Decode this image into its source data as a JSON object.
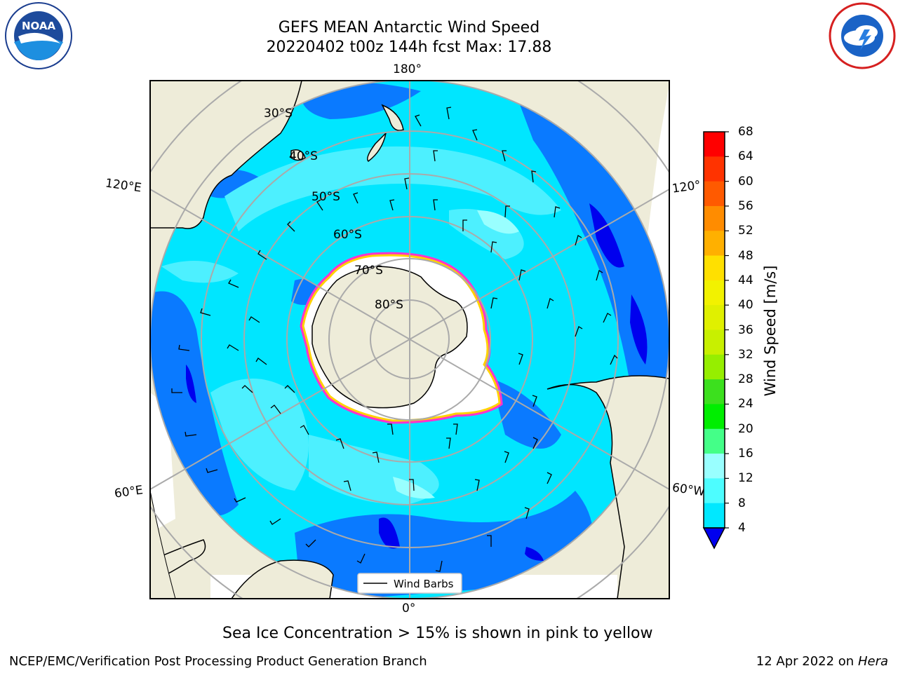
{
  "header": {
    "title_line1": "GEFS MEAN Antarctic Wind Speed",
    "title_line2": "20220402 t00z 144h fcst   Max: 17.88"
  },
  "logos": {
    "left": "noara-logo",
    "right": "nws-logo"
  },
  "map": {
    "lon_labels": {
      "top": "180°",
      "bottom": "0°",
      "left_upper": "120°E",
      "left_lower": "60°E",
      "right_upper": "120°",
      "right_lower": "60°W"
    },
    "lat_labels": [
      "30°S",
      "40°S",
      "50°S",
      "60°S",
      "70°S",
      "80°S"
    ],
    "legend_label": "Wind Barbs",
    "colors": {
      "land": "#eeecd9",
      "ocean_4": "#0a7aff",
      "ocean_8": "#00e6ff",
      "ocean_12": "#4df0ff",
      "ocean_16": "#99ffff",
      "ice_pink": "#ff33cc",
      "ice_yellow": "#ffd200"
    }
  },
  "colorbar": {
    "label": "Wind Speed [m/s]",
    "ticks": [
      "68",
      "64",
      "60",
      "56",
      "52",
      "48",
      "44",
      "40",
      "36",
      "32",
      "28",
      "24",
      "20",
      "16",
      "12",
      "8",
      "4"
    ],
    "colors": [
      "#ff0000",
      "#ff3300",
      "#ff5a00",
      "#ff8c00",
      "#ffb000",
      "#ffe000",
      "#f2f200",
      "#e0f000",
      "#c8f000",
      "#96ee00",
      "#3ce01e",
      "#00ee00",
      "#44ff88",
      "#99ffff",
      "#4dfdff",
      "#00e8ff",
      "#0a7aff"
    ],
    "under_color": "#0000ee"
  },
  "caption": "Sea Ice Concentration > 15% is shown in pink to yellow",
  "footer": {
    "left": "NCEP/EMC/Verification Post Processing Product Generation Branch",
    "right_date": "12 Apr 2022 on",
    "right_machine": "Hera"
  }
}
